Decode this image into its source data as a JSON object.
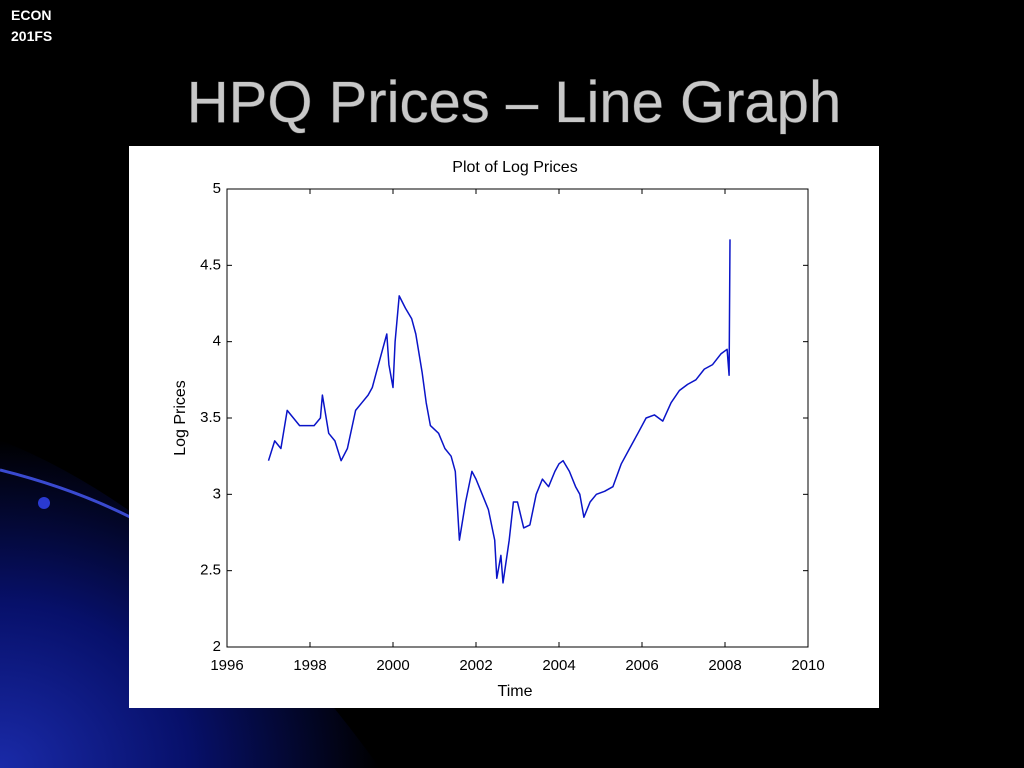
{
  "slide": {
    "header": [
      "ECON",
      "201FS"
    ],
    "title": "HPQ Prices – Line Graph"
  },
  "chart_data": {
    "type": "line",
    "title": "Plot of Log Prices",
    "xlabel": "Time",
    "ylabel": "Log Prices",
    "x": [
      1997.0,
      1997.15,
      1997.3,
      1997.45,
      1997.6,
      1997.75,
      1998.0,
      1998.1,
      1998.25,
      1998.3,
      1998.45,
      1998.6,
      1998.75,
      1998.9,
      1999.1,
      1999.25,
      1999.4,
      1999.5,
      1999.6,
      1999.75,
      1999.85,
      1999.9,
      2000.0,
      2000.05,
      2000.15,
      2000.3,
      2000.45,
      2000.55,
      2000.7,
      2000.8,
      2000.9,
      2001.1,
      2001.25,
      2001.4,
      2001.5,
      2001.6,
      2001.75,
      2001.9,
      2002.0,
      2002.15,
      2002.3,
      2002.45,
      2002.5,
      2002.6,
      2002.65,
      2002.8,
      2002.9,
      2003.0,
      2003.15,
      2003.3,
      2003.45,
      2003.6,
      2003.75,
      2003.9,
      2004.0,
      2004.1,
      2004.25,
      2004.4,
      2004.5,
      2004.6,
      2004.75,
      2004.9,
      2005.1,
      2005.3,
      2005.5,
      2005.7,
      2005.9,
      2006.1,
      2006.3,
      2006.5,
      2006.7,
      2006.9,
      2007.1,
      2007.3,
      2007.5,
      2007.7,
      2007.9,
      2008.05,
      2008.1,
      2008.12
    ],
    "values": [
      3.22,
      3.35,
      3.3,
      3.55,
      3.5,
      3.45,
      3.45,
      3.45,
      3.5,
      3.65,
      3.4,
      3.35,
      3.22,
      3.3,
      3.55,
      3.6,
      3.65,
      3.7,
      3.8,
      3.95,
      4.05,
      3.85,
      3.7,
      4.0,
      4.3,
      4.22,
      4.15,
      4.05,
      3.8,
      3.6,
      3.45,
      3.4,
      3.3,
      3.25,
      3.15,
      2.7,
      2.95,
      3.15,
      3.1,
      3.0,
      2.9,
      2.7,
      2.45,
      2.6,
      2.42,
      2.7,
      2.95,
      2.95,
      2.78,
      2.8,
      3.0,
      3.1,
      3.05,
      3.15,
      3.2,
      3.22,
      3.15,
      3.05,
      3.0,
      2.85,
      2.95,
      3.0,
      3.02,
      3.05,
      3.2,
      3.3,
      3.4,
      3.5,
      3.52,
      3.48,
      3.6,
      3.68,
      3.72,
      3.75,
      3.82,
      3.85,
      3.92,
      3.95,
      3.78,
      4.67
    ],
    "color": "#0a14c8",
    "xlim": [
      1996,
      2010
    ],
    "xticks": [
      1996,
      1998,
      2000,
      2002,
      2004,
      2006,
      2008,
      2010
    ],
    "ylim": [
      2,
      5
    ],
    "yticks": [
      2,
      2.5,
      3,
      3.5,
      4,
      4.5,
      5
    ]
  }
}
